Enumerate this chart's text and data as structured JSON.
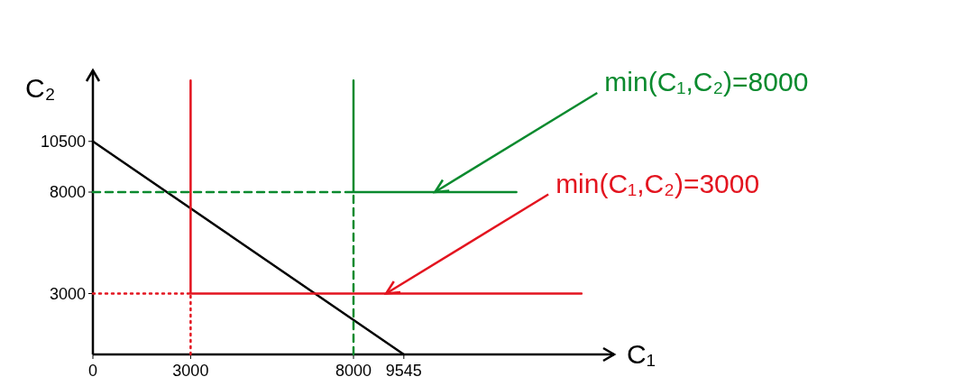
{
  "chart_data": {
    "type": "line",
    "xlabel": "C₁",
    "ylabel": "C₂",
    "xlim": [
      0,
      16000
    ],
    "ylim": [
      0,
      14000
    ],
    "xticks": [
      0,
      3000,
      8000,
      9545
    ],
    "yticks": [
      3000,
      8000,
      10500
    ],
    "grid": false,
    "marker": "none",
    "series": [
      {
        "color": "#000000",
        "x": [
          0,
          9545
        ],
        "values": [
          10500,
          0
        ]
      },
      {
        "name": "min(C₁,C₂)=3000",
        "color": "#e3141f",
        "x": [
          3000,
          3000,
          15000
        ],
        "values": [
          13500,
          3000,
          3000
        ]
      },
      {
        "name": "min(C₁,C₂)=8000",
        "color": "#0a8a2e",
        "x": [
          8000,
          8000,
          13000
        ],
        "values": [
          13500,
          8000,
          8000
        ]
      },
      {
        "color": "#e3141f",
        "line_style": "dotted",
        "x": [
          0,
          3000
        ],
        "values": [
          3000,
          3000
        ]
      },
      {
        "color": "#e3141f",
        "line_style": "dotted",
        "x": [
          3000,
          3000
        ],
        "values": [
          0,
          3000
        ]
      },
      {
        "color": "#0a8a2e",
        "line_style": "dashed",
        "x": [
          0,
          8000
        ],
        "values": [
          8000,
          8000
        ]
      },
      {
        "color": "#0a8a2e",
        "line_style": "dashed",
        "x": [
          8000,
          8000
        ],
        "values": [
          0,
          8000
        ]
      }
    ]
  }
}
